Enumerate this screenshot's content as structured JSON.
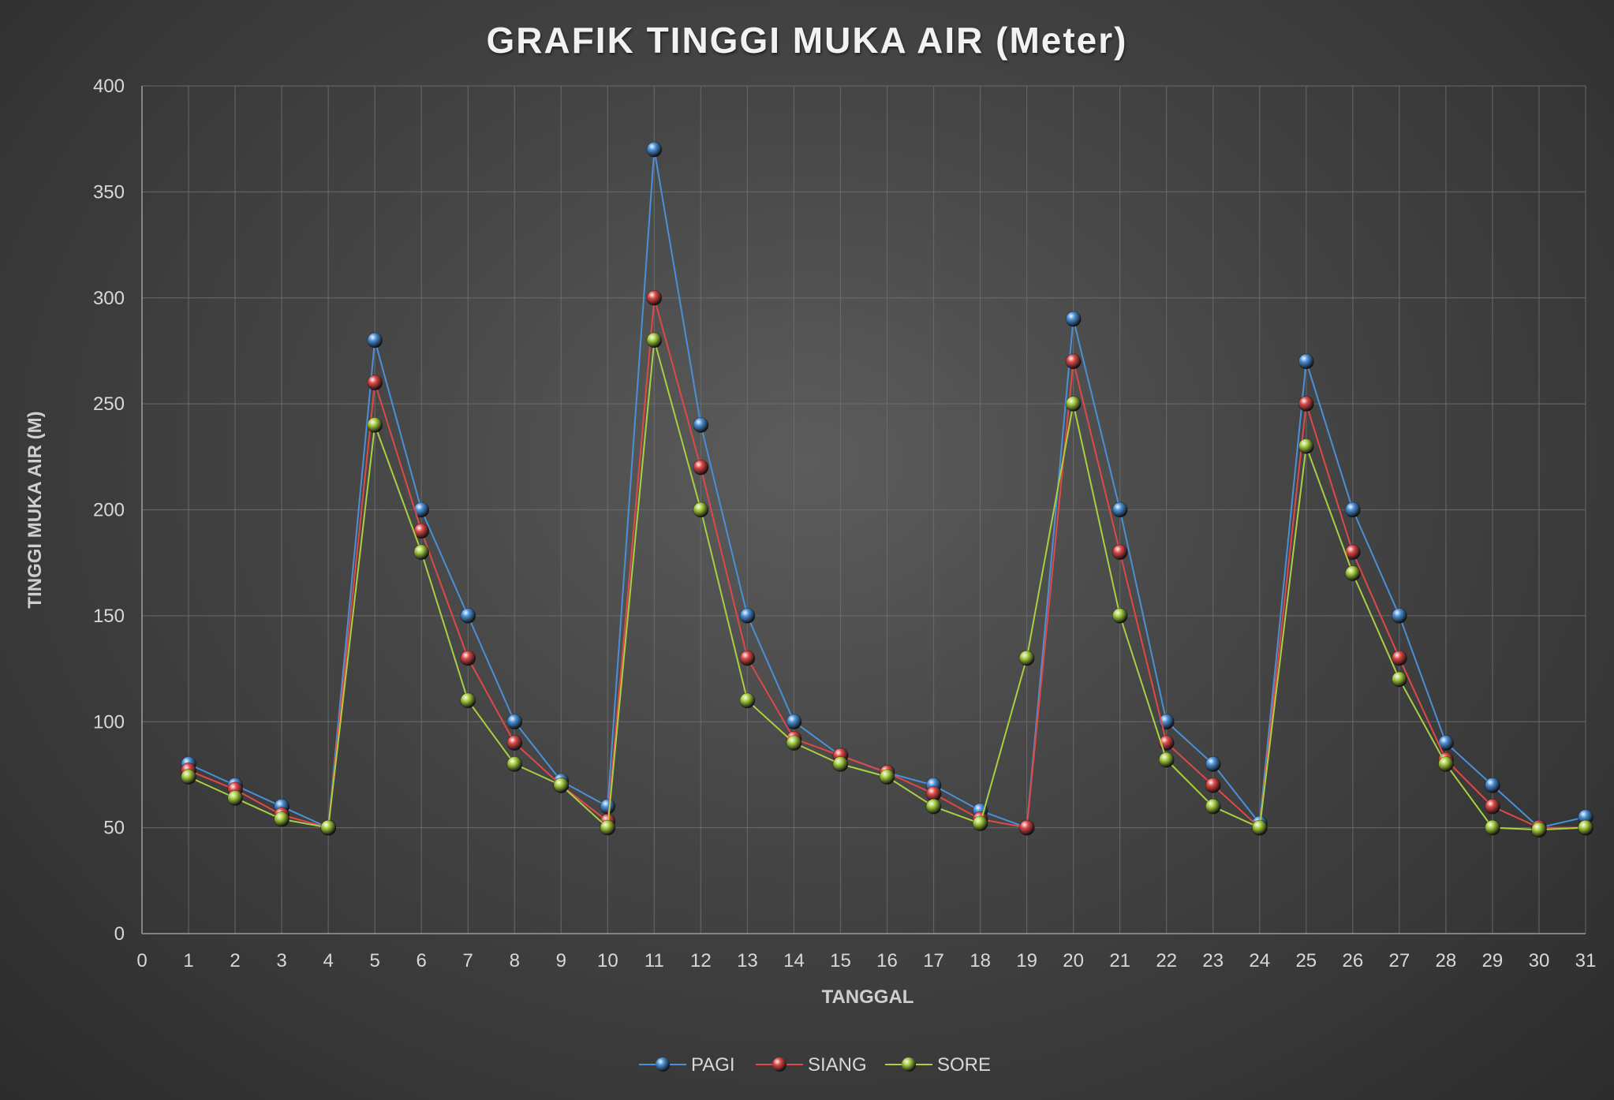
{
  "chart_data": {
    "type": "line",
    "title": "GRAFIK TINGGI MUKA AIR (Meter)",
    "xlabel": "TANGGAL",
    "ylabel": "TINGGI MUKA AIR (M)",
    "xlim": [
      0,
      31
    ],
    "ylim": [
      0,
      400
    ],
    "x_ticks": [
      0,
      1,
      2,
      3,
      4,
      5,
      6,
      7,
      8,
      9,
      10,
      11,
      12,
      13,
      14,
      15,
      16,
      17,
      18,
      19,
      20,
      21,
      22,
      23,
      24,
      25,
      26,
      27,
      28,
      29,
      30,
      31
    ],
    "y_ticks": [
      0,
      50,
      100,
      150,
      200,
      250,
      300,
      350,
      400
    ],
    "x": [
      1,
      2,
      3,
      4,
      5,
      6,
      7,
      8,
      9,
      10,
      11,
      12,
      13,
      14,
      15,
      16,
      17,
      18,
      19,
      20,
      21,
      22,
      23,
      24,
      25,
      26,
      27,
      28,
      29,
      30,
      31
    ],
    "grid": true,
    "legend_position": "bottom",
    "series": [
      {
        "name": "PAGI",
        "color": "#4a90d9",
        "values": [
          80,
          70,
          60,
          50,
          280,
          200,
          150,
          100,
          72,
          60,
          370,
          240,
          150,
          100,
          84,
          76,
          70,
          58,
          50,
          290,
          200,
          100,
          80,
          52,
          270,
          200,
          150,
          90,
          70,
          50,
          55
        ]
      },
      {
        "name": "SIANG",
        "color": "#e04848",
        "values": [
          77,
          68,
          56,
          50,
          260,
          190,
          130,
          90,
          70,
          53,
          300,
          220,
          130,
          92,
          84,
          76,
          66,
          54,
          50,
          270,
          180,
          90,
          70,
          50,
          250,
          180,
          130,
          82,
          60,
          50,
          50
        ]
      },
      {
        "name": "SORE",
        "color": "#a8d040",
        "values": [
          74,
          64,
          54,
          50,
          240,
          180,
          110,
          80,
          70,
          50,
          280,
          200,
          110,
          90,
          80,
          74,
          60,
          52,
          130,
          250,
          150,
          82,
          60,
          50,
          230,
          170,
          120,
          80,
          50,
          49,
          50
        ]
      }
    ]
  }
}
